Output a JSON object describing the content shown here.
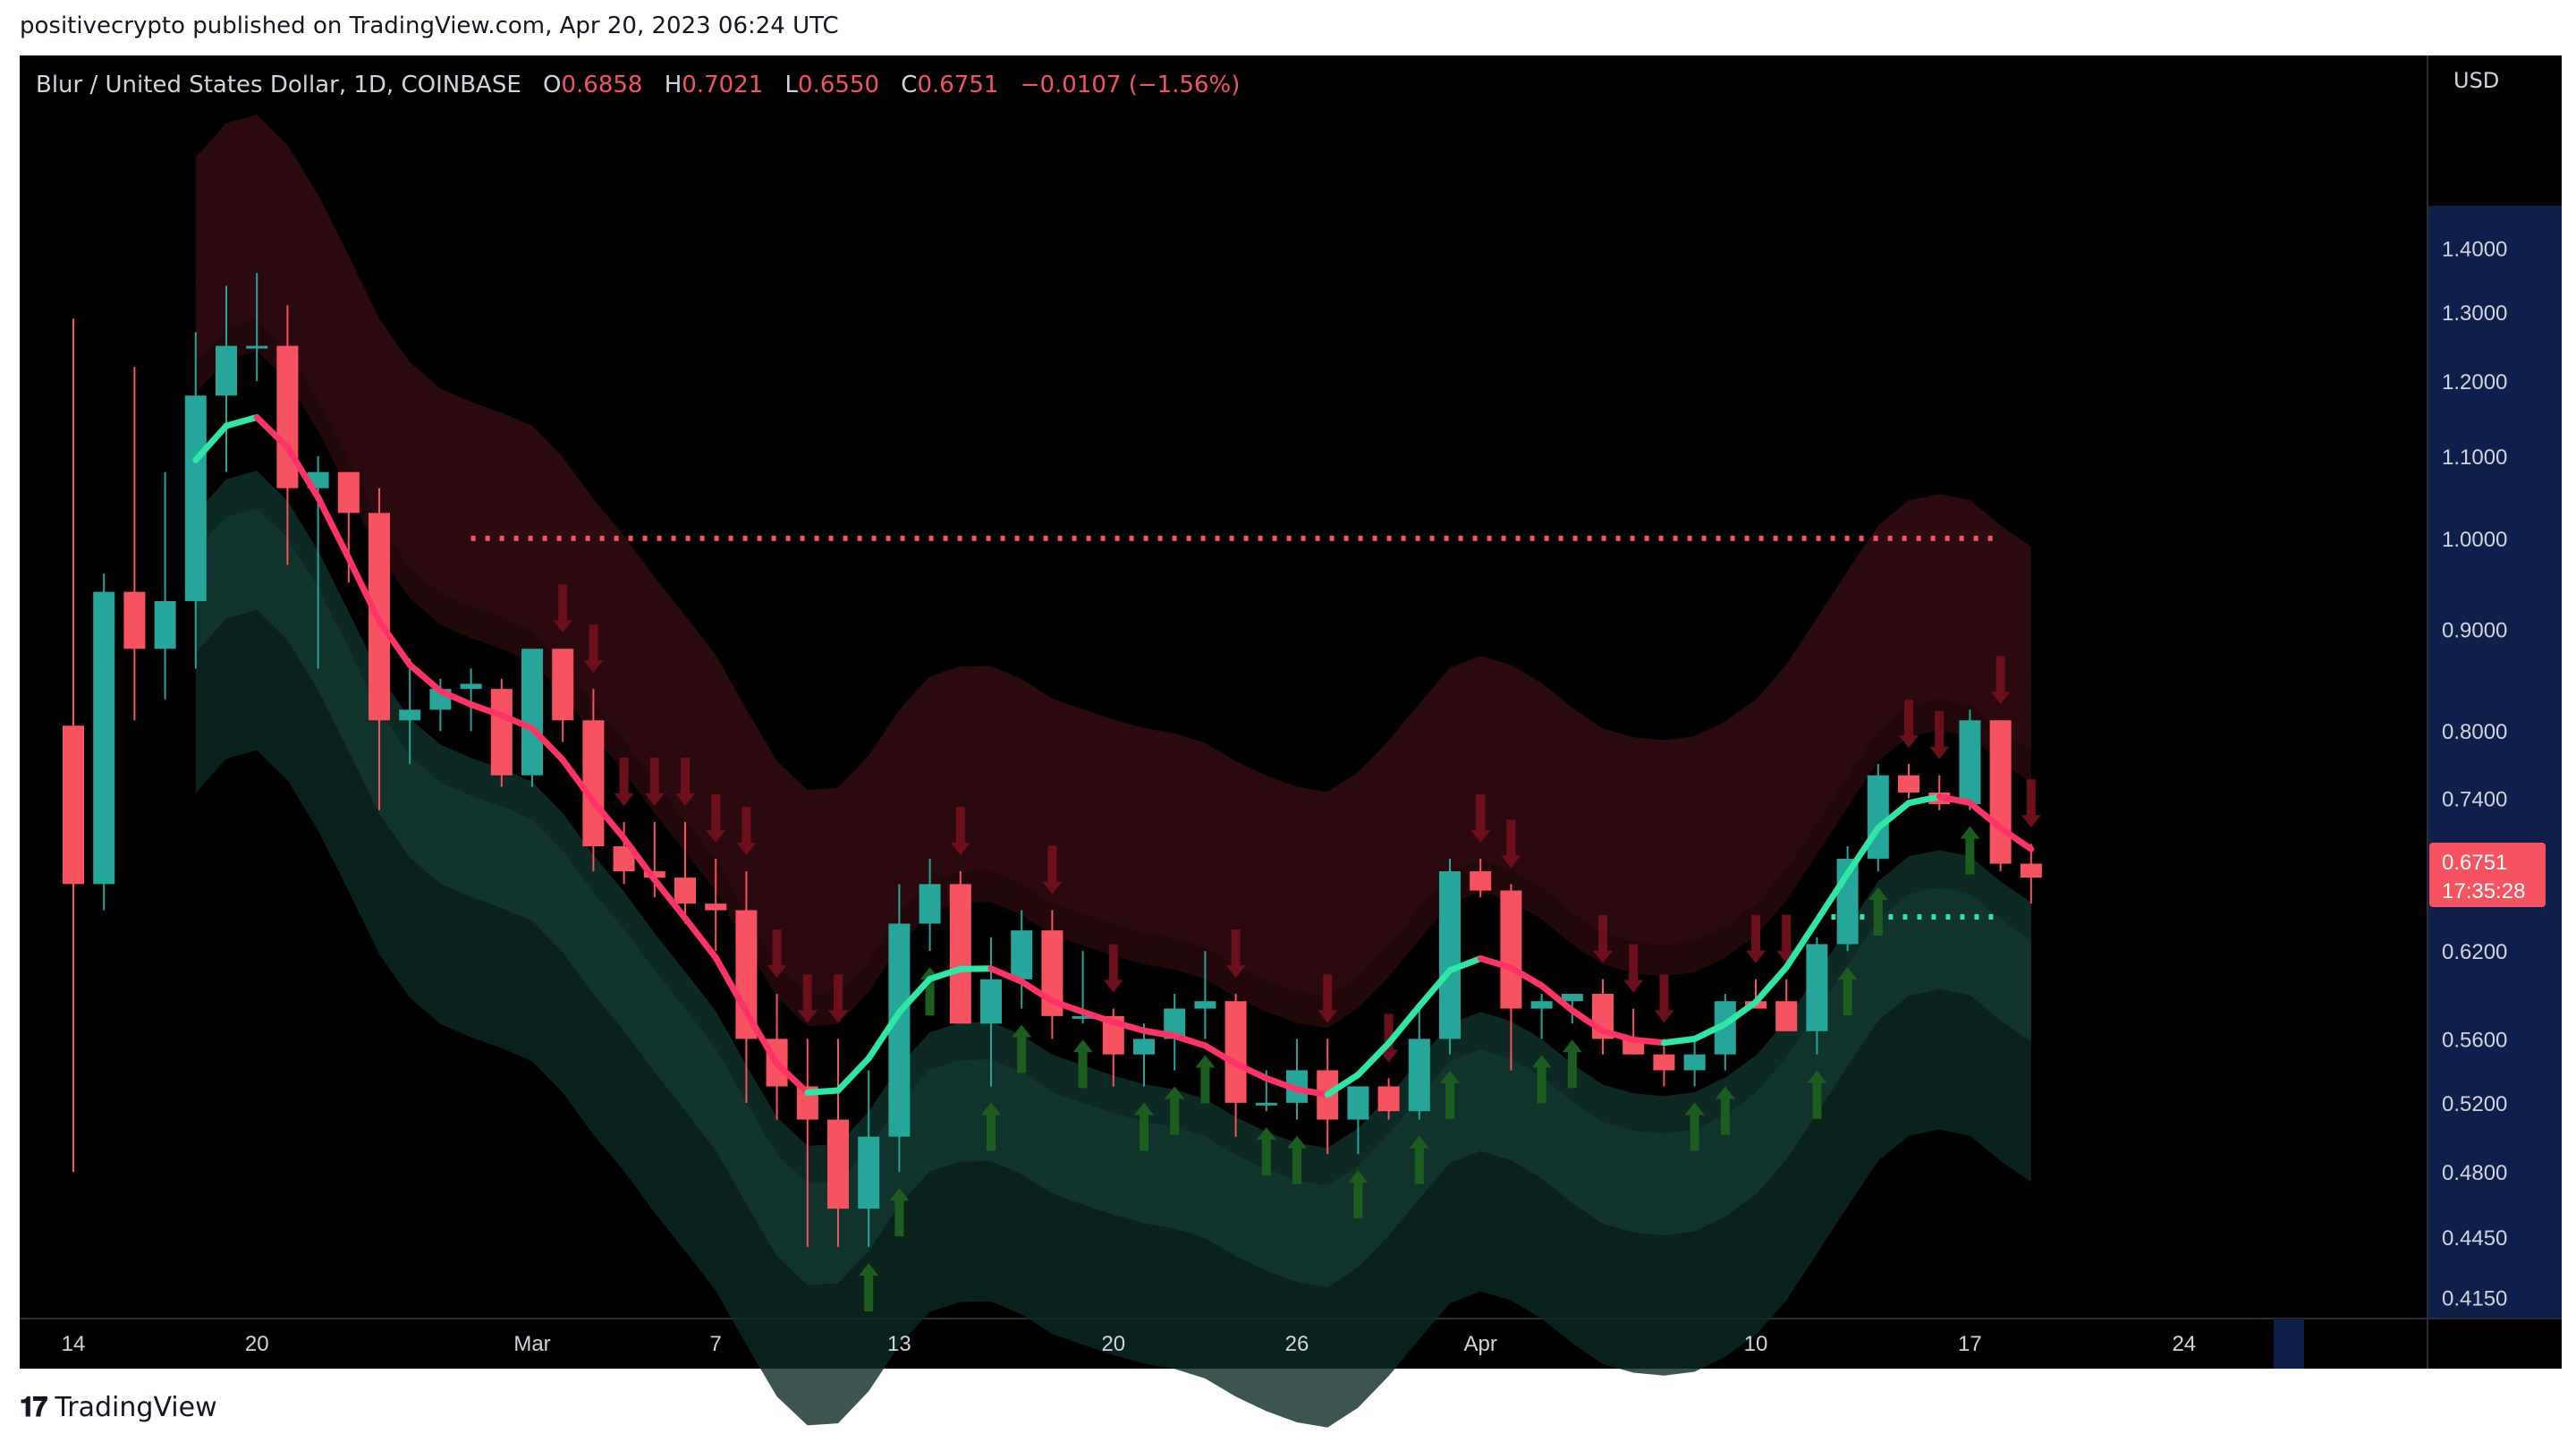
{
  "header": {
    "publisher": "positivecrypto published on TradingView.com, Apr 20, 2023 06:24 UTC"
  },
  "legend": {
    "symbol": "Blur / United States Dollar, 1D, COINBASE",
    "open_label": "O",
    "open": "0.6858",
    "high_label": "H",
    "high": "0.7021",
    "low_label": "L",
    "low": "0.6550",
    "close_label": "C",
    "close": "0.6751",
    "change": "−0.0107 (−1.56%)"
  },
  "price_axis": {
    "currency": "USD",
    "last_price": "0.6751",
    "countdown": "17:35:28"
  },
  "footer": {
    "brand": "TradingView"
  },
  "colors": {
    "bull": "#26a69a",
    "bear": "#f7525f",
    "background": "#000000",
    "axis_text": "#d1d4dc",
    "axis_highlight": "#0e1f4a"
  },
  "chart_data": {
    "type": "candlestick",
    "y_scale": "log",
    "ylim": [
      0.405,
      1.75
    ],
    "y_ticks": [
      "1.4000",
      "1.3000",
      "1.2000",
      "1.1000",
      "1.0000",
      "0.9000",
      "0.8000",
      "0.7400",
      "0.6200",
      "0.5600",
      "0.5200",
      "0.4800",
      "0.4450",
      "0.4150"
    ],
    "x_tick_labels": [
      {
        "label": "14",
        "day": 0
      },
      {
        "label": "20",
        "day": 6
      },
      {
        "label": "Mar",
        "day": 15
      },
      {
        "label": "7",
        "day": 21
      },
      {
        "label": "13",
        "day": 27
      },
      {
        "label": "20",
        "day": 34
      },
      {
        "label": "26",
        "day": 40
      },
      {
        "label": "Apr",
        "day": 46
      },
      {
        "label": "10",
        "day": 55
      },
      {
        "label": "17",
        "day": 62
      },
      {
        "label": "24",
        "day": 69
      }
    ],
    "resistance_level": 1.0,
    "support_level": 0.645,
    "candles": [
      [
        0.805,
        1.29,
        0.48,
        0.67
      ],
      [
        0.67,
        0.96,
        0.65,
        0.94
      ],
      [
        0.94,
        1.22,
        0.81,
        0.88
      ],
      [
        0.88,
        1.08,
        0.83,
        0.93
      ],
      [
        0.93,
        1.27,
        0.86,
        1.18
      ],
      [
        1.18,
        1.34,
        1.08,
        1.25
      ],
      [
        1.25,
        1.36,
        1.2,
        1.25
      ],
      [
        1.25,
        1.31,
        0.97,
        1.06
      ],
      [
        1.06,
        1.1,
        0.86,
        1.08
      ],
      [
        1.08,
        1.08,
        0.95,
        1.03
      ],
      [
        1.03,
        1.06,
        0.73,
        0.81
      ],
      [
        0.81,
        0.87,
        0.77,
        0.82
      ],
      [
        0.82,
        0.85,
        0.8,
        0.84
      ],
      [
        0.84,
        0.86,
        0.8,
        0.845
      ],
      [
        0.84,
        0.85,
        0.75,
        0.76
      ],
      [
        0.76,
        0.88,
        0.75,
        0.88
      ],
      [
        0.88,
        0.88,
        0.79,
        0.81
      ],
      [
        0.81,
        0.84,
        0.68,
        0.7
      ],
      [
        0.7,
        0.72,
        0.67,
        0.68
      ],
      [
        0.68,
        0.72,
        0.66,
        0.675
      ],
      [
        0.675,
        0.72,
        0.64,
        0.655
      ],
      [
        0.655,
        0.69,
        0.62,
        0.65
      ],
      [
        0.65,
        0.68,
        0.52,
        0.56
      ],
      [
        0.56,
        0.59,
        0.51,
        0.53
      ],
      [
        0.53,
        0.56,
        0.44,
        0.51
      ],
      [
        0.51,
        0.56,
        0.44,
        0.46
      ],
      [
        0.46,
        0.54,
        0.44,
        0.5
      ],
      [
        0.5,
        0.67,
        0.48,
        0.64
      ],
      [
        0.64,
        0.69,
        0.62,
        0.67
      ],
      [
        0.67,
        0.68,
        0.57,
        0.57
      ],
      [
        0.57,
        0.63,
        0.53,
        0.6
      ],
      [
        0.6,
        0.65,
        0.58,
        0.635
      ],
      [
        0.635,
        0.65,
        0.56,
        0.575
      ],
      [
        0.575,
        0.62,
        0.57,
        0.575
      ],
      [
        0.575,
        0.58,
        0.53,
        0.55
      ],
      [
        0.55,
        0.57,
        0.53,
        0.56
      ],
      [
        0.56,
        0.59,
        0.54,
        0.58
      ],
      [
        0.58,
        0.62,
        0.56,
        0.585
      ],
      [
        0.585,
        0.59,
        0.5,
        0.52
      ],
      [
        0.52,
        0.54,
        0.515,
        0.52
      ],
      [
        0.52,
        0.56,
        0.51,
        0.54
      ],
      [
        0.54,
        0.56,
        0.49,
        0.51
      ],
      [
        0.51,
        0.53,
        0.49,
        0.53
      ],
      [
        0.53,
        0.535,
        0.51,
        0.515
      ],
      [
        0.515,
        0.58,
        0.51,
        0.56
      ],
      [
        0.56,
        0.69,
        0.55,
        0.68
      ],
      [
        0.68,
        0.69,
        0.66,
        0.665
      ],
      [
        0.665,
        0.67,
        0.54,
        0.58
      ],
      [
        0.58,
        0.59,
        0.56,
        0.585
      ],
      [
        0.585,
        0.59,
        0.57,
        0.59
      ],
      [
        0.59,
        0.6,
        0.55,
        0.56
      ],
      [
        0.56,
        0.58,
        0.55,
        0.55
      ],
      [
        0.55,
        0.56,
        0.53,
        0.54
      ],
      [
        0.54,
        0.56,
        0.53,
        0.55
      ],
      [
        0.55,
        0.59,
        0.54,
        0.585
      ],
      [
        0.585,
        0.6,
        0.58,
        0.58
      ],
      [
        0.585,
        0.6,
        0.57,
        0.565
      ],
      [
        0.565,
        0.63,
        0.55,
        0.625
      ],
      [
        0.625,
        0.7,
        0.62,
        0.69
      ],
      [
        0.69,
        0.77,
        0.68,
        0.76
      ],
      [
        0.76,
        0.77,
        0.74,
        0.745
      ],
      [
        0.745,
        0.76,
        0.73,
        0.735
      ],
      [
        0.735,
        0.82,
        0.73,
        0.81
      ],
      [
        0.81,
        0.81,
        0.68,
        0.686
      ],
      [
        0.686,
        0.702,
        0.655,
        0.6751
      ]
    ]
  }
}
